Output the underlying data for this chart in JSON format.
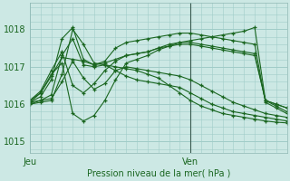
{
  "bg_color": "#cce8e4",
  "grid_color": "#a0ccc8",
  "line_color": "#1a6620",
  "ylabel": "Pression niveau de la mer( hPa )",
  "yticks": [
    1015,
    1016,
    1017,
    1018
  ],
  "ylim": [
    1014.7,
    1018.7
  ],
  "xlim_hours": 48,
  "xtick_hours": [
    0,
    30
  ],
  "xtick_labels": [
    "Jeu",
    "Ven"
  ],
  "vline_hour": 30,
  "series": [
    {
      "x": [
        0,
        2,
        4,
        6,
        8,
        10,
        12,
        14,
        16,
        18,
        20,
        22,
        24,
        26,
        28,
        30,
        32,
        34,
        36,
        38,
        40,
        42,
        44,
        46,
        48
      ],
      "y": [
        1016.0,
        1016.05,
        1016.1,
        1016.8,
        1018.0,
        1017.6,
        1017.1,
        1017.05,
        1017.0,
        1016.95,
        1016.9,
        1016.8,
        1016.7,
        1016.5,
        1016.3,
        1016.1,
        1015.95,
        1015.85,
        1015.75,
        1015.7,
        1015.65,
        1015.6,
        1015.55,
        1015.52,
        1015.5
      ]
    },
    {
      "x": [
        0,
        2,
        4,
        6,
        8,
        10,
        12,
        14,
        16,
        18,
        20,
        22,
        24,
        26,
        28,
        30,
        32,
        34,
        36,
        38,
        40,
        42,
        44,
        46,
        48
      ],
      "y": [
        1016.05,
        1016.1,
        1016.15,
        1016.6,
        1017.15,
        1016.7,
        1016.4,
        1016.55,
        1016.9,
        1017.0,
        1016.95,
        1016.9,
        1016.85,
        1016.8,
        1016.75,
        1016.65,
        1016.5,
        1016.35,
        1016.2,
        1016.05,
        1015.95,
        1015.85,
        1015.75,
        1015.7,
        1015.65
      ]
    },
    {
      "x": [
        0,
        2,
        4,
        6,
        8,
        10,
        12,
        14,
        16,
        18,
        20,
        22,
        24,
        26,
        28,
        30,
        32,
        34,
        36,
        38,
        40,
        42,
        44,
        46,
        48
      ],
      "y": [
        1016.0,
        1016.1,
        1016.25,
        1017.3,
        1017.75,
        1017.05,
        1017.0,
        1017.05,
        1016.9,
        1016.75,
        1016.65,
        1016.6,
        1016.55,
        1016.5,
        1016.45,
        1016.3,
        1016.15,
        1016.0,
        1015.9,
        1015.8,
        1015.75,
        1015.7,
        1015.65,
        1015.6,
        1015.55
      ]
    },
    {
      "x": [
        0,
        2,
        4,
        6,
        8,
        10,
        12,
        14,
        16,
        18,
        20,
        22,
        24,
        26,
        28,
        30,
        32,
        34,
        36,
        38,
        40,
        42,
        44,
        46,
        48
      ],
      "y": [
        1016.05,
        1016.2,
        1016.65,
        1017.75,
        1018.05,
        1017.2,
        1017.05,
        1017.1,
        1017.2,
        1017.3,
        1017.35,
        1017.4,
        1017.5,
        1017.55,
        1017.6,
        1017.6,
        1017.55,
        1017.5,
        1017.45,
        1017.4,
        1017.35,
        1017.3,
        1016.1,
        1015.95,
        1015.8
      ]
    },
    {
      "x": [
        0,
        2,
        4,
        6,
        8,
        10,
        12,
        14,
        16,
        18,
        20,
        22,
        24,
        26,
        28,
        30,
        32,
        34,
        36,
        38,
        40,
        42,
        44,
        46,
        48
      ],
      "y": [
        1016.1,
        1016.3,
        1016.75,
        1017.25,
        1017.2,
        1017.15,
        1017.05,
        1017.15,
        1017.5,
        1017.65,
        1017.7,
        1017.75,
        1017.8,
        1017.85,
        1017.9,
        1017.9,
        1017.85,
        1017.8,
        1017.75,
        1017.7,
        1017.65,
        1017.6,
        1016.05,
        1015.9,
        1015.75
      ]
    },
    {
      "x": [
        0,
        2,
        4,
        6,
        8,
        10,
        12,
        14,
        16,
        18,
        20,
        22,
        24,
        26,
        28,
        30,
        32,
        34,
        36,
        38,
        40,
        42,
        44,
        46,
        48
      ],
      "y": [
        1016.1,
        1016.35,
        1016.9,
        1017.4,
        1016.5,
        1016.3,
        1016.55,
        1016.9,
        1017.15,
        1017.3,
        1017.35,
        1017.4,
        1017.5,
        1017.6,
        1017.65,
        1017.65,
        1017.6,
        1017.55,
        1017.5,
        1017.45,
        1017.4,
        1017.35,
        1016.1,
        1016.0,
        1015.9
      ]
    },
    {
      "x": [
        0,
        2,
        4,
        6,
        8,
        10,
        12,
        14,
        16,
        18,
        20,
        22,
        24,
        26,
        28,
        30,
        32,
        34,
        36,
        38,
        40,
        42,
        44,
        46,
        48
      ],
      "y": [
        1016.05,
        1016.3,
        1016.8,
        1017.1,
        1015.75,
        1015.55,
        1015.7,
        1016.1,
        1016.65,
        1017.1,
        1017.2,
        1017.3,
        1017.45,
        1017.55,
        1017.65,
        1017.7,
        1017.75,
        1017.8,
        1017.85,
        1017.9,
        1017.95,
        1018.05,
        1016.1,
        1016.0,
        1015.9
      ]
    }
  ]
}
